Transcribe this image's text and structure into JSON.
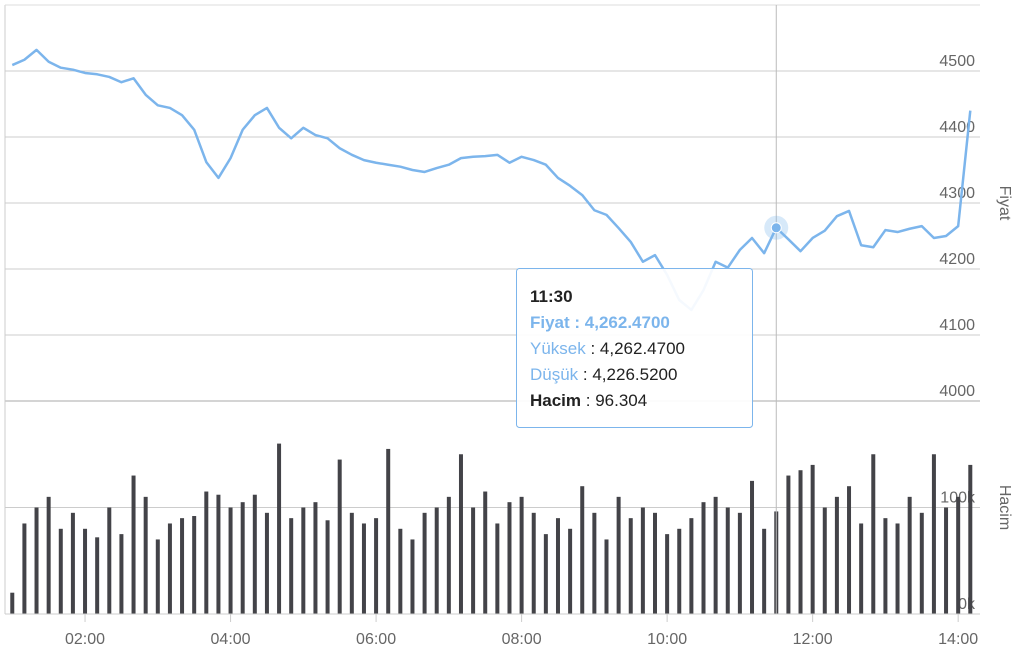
{
  "chart_data": [
    {
      "type": "line",
      "x": [
        "01:00",
        "01:10",
        "01:20",
        "01:30",
        "01:40",
        "01:50",
        "02:00",
        "02:10",
        "02:20",
        "02:30",
        "02:40",
        "02:50",
        "03:00",
        "03:10",
        "03:20",
        "03:30",
        "03:40",
        "03:50",
        "04:00",
        "04:10",
        "04:20",
        "04:30",
        "04:40",
        "04:50",
        "05:00",
        "05:10",
        "05:20",
        "05:30",
        "05:40",
        "05:50",
        "06:00",
        "06:10",
        "06:20",
        "06:30",
        "06:40",
        "06:50",
        "07:00",
        "07:10",
        "07:20",
        "07:30",
        "07:40",
        "07:50",
        "08:00",
        "08:10",
        "08:20",
        "08:30",
        "08:40",
        "08:50",
        "09:00",
        "09:10",
        "09:20",
        "09:30",
        "09:40",
        "09:50",
        "10:00",
        "10:10",
        "10:20",
        "10:30",
        "10:40",
        "10:50",
        "11:00",
        "11:10",
        "11:20",
        "11:30",
        "11:40",
        "11:50",
        "12:00",
        "12:10",
        "12:20",
        "12:30",
        "12:40",
        "12:50",
        "13:00",
        "13:10",
        "13:20",
        "13:30",
        "13:40",
        "13:50",
        "14:00",
        "14:10"
      ],
      "series": [
        {
          "color": "#7cb5ec",
          "values": [
            4509,
            4517,
            4532,
            4514,
            4505,
            4502,
            4497,
            4495,
            4491,
            4483,
            4489,
            4464,
            4448,
            4444,
            4433,
            4411,
            4362,
            4338,
            4368,
            4411,
            4433,
            4444,
            4414,
            4398,
            4414,
            4403,
            4398,
            4383,
            4373,
            4365,
            4361,
            4358,
            4355,
            4350,
            4347,
            4353,
            4358,
            4368,
            4370,
            4371,
            4373,
            4361,
            4370,
            4365,
            4358,
            4338,
            4326,
            4312,
            4289,
            4282,
            4262,
            4241,
            4211,
            4221,
            4191,
            4153,
            4138,
            4168,
            4211,
            4202,
            4229,
            4247,
            4224,
            4262.47,
            4245,
            4227,
            4247,
            4258,
            4280,
            4288,
            4236,
            4233,
            4259,
            4256,
            4261,
            4265,
            4247,
            4250,
            4265,
            4440
          ]
        }
      ],
      "xlim": [
        "00:54",
        "14:18"
      ],
      "ylim": [
        4000,
        4600
      ],
      "yticks": [
        4000,
        4100,
        4200,
        4300,
        4400,
        4500
      ],
      "ylabel": "Fiyat",
      "grid": true,
      "tooltip": {
        "title": "11:30",
        "rows": [
          {
            "label": "Fiyat",
            "text": " : 4,262.4700"
          },
          {
            "label": "Yüksek",
            "text": " : 4,262.4700"
          },
          {
            "label": "Düşük",
            "text": " : 4,226.5200"
          },
          {
            "label": "Hacim",
            "text": " : 96.304"
          }
        ]
      }
    },
    {
      "type": "bar",
      "x": [
        "01:00",
        "01:10",
        "01:20",
        "01:30",
        "01:40",
        "01:50",
        "02:00",
        "02:10",
        "02:20",
        "02:30",
        "02:40",
        "02:50",
        "03:00",
        "03:10",
        "03:20",
        "03:30",
        "03:40",
        "03:50",
        "04:00",
        "04:10",
        "04:20",
        "04:30",
        "04:40",
        "04:50",
        "05:00",
        "05:10",
        "05:20",
        "05:30",
        "05:40",
        "05:50",
        "06:00",
        "06:10",
        "06:20",
        "06:30",
        "06:40",
        "06:50",
        "07:00",
        "07:10",
        "07:20",
        "07:30",
        "07:40",
        "07:50",
        "08:00",
        "08:10",
        "08:20",
        "08:30",
        "08:40",
        "08:50",
        "09:00",
        "09:10",
        "09:20",
        "09:30",
        "09:40",
        "09:50",
        "10:00",
        "10:10",
        "10:20",
        "10:30",
        "10:40",
        "10:50",
        "11:00",
        "11:10",
        "11:20",
        "11:30",
        "11:40",
        "11:50",
        "12:00",
        "12:10",
        "12:20",
        "12:30",
        "12:40",
        "12:50",
        "13:00",
        "13:10",
        "13:20",
        "13:30",
        "13:40",
        "13:50",
        "14:00",
        "14:10"
      ],
      "series": [
        {
          "color": "#434348",
          "values": [
            20000,
            85000,
            100000,
            110000,
            80000,
            95000,
            80000,
            72000,
            100000,
            75000,
            130000,
            110000,
            70000,
            85000,
            90000,
            92000,
            115000,
            112000,
            100000,
            105000,
            112000,
            95000,
            160000,
            90000,
            100000,
            105000,
            88000,
            145000,
            95000,
            85000,
            90000,
            155000,
            80000,
            70000,
            95000,
            100000,
            110000,
            150000,
            100000,
            115000,
            85000,
            105000,
            110000,
            95000,
            75000,
            90000,
            80000,
            120000,
            95000,
            70000,
            110000,
            90000,
            100000,
            95000,
            75000,
            80000,
            90000,
            105000,
            110000,
            100000,
            95000,
            125000,
            80000,
            96304,
            130000,
            135000,
            140000,
            100000,
            110000,
            120000,
            85000,
            150000,
            90000,
            85000,
            110000,
            95000,
            150000,
            100000,
            110000,
            140000
          ]
        }
      ],
      "xlim": [
        "00:54",
        "14:18"
      ],
      "xticks": [
        "02:00",
        "04:00",
        "06:00",
        "08:00",
        "10:00",
        "12:00",
        "14:00"
      ],
      "ylim": [
        0,
        200000
      ],
      "yticks": [
        {
          "value": 0,
          "label": "0k"
        },
        {
          "value": 100000,
          "label": "100k"
        }
      ],
      "ylabel": "Hacim",
      "grid": true
    }
  ]
}
